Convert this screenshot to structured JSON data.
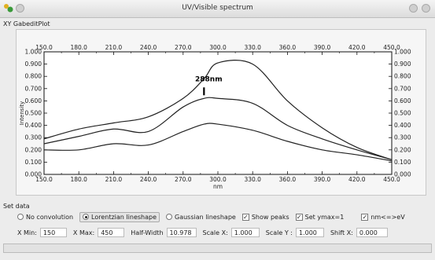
{
  "window": {
    "title": "UV/Visible spectrum"
  },
  "plot_panel": {
    "label": "XY GabeditPlot"
  },
  "chart_data": {
    "type": "line",
    "xlabel": "nm",
    "ylabel": "Intensity",
    "xlim": [
      150,
      450
    ],
    "ylim": [
      0,
      1
    ],
    "x_ticks": [
      "150.0",
      "180.0",
      "210.0",
      "240.0",
      "270.0",
      "300.0",
      "330.0",
      "360.0",
      "390.0",
      "420.0",
      "450.0"
    ],
    "y_ticks": [
      "0.000",
      "0.100",
      "0.200",
      "0.300",
      "0.400",
      "0.500",
      "0.600",
      "0.700",
      "0.800",
      "0.900",
      "1.000"
    ],
    "series": [
      {
        "x": [
          150,
          180,
          210,
          240,
          270,
          288,
          300,
          330,
          360,
          390,
          420,
          450
        ],
        "y": [
          0.29,
          0.37,
          0.42,
          0.47,
          0.62,
          0.78,
          0.91,
          0.9,
          0.6,
          0.38,
          0.22,
          0.12
        ]
      },
      {
        "x": [
          150,
          180,
          210,
          240,
          270,
          288,
          300,
          330,
          360,
          390,
          420,
          450
        ],
        "y": [
          0.25,
          0.31,
          0.37,
          0.35,
          0.55,
          0.62,
          0.62,
          0.58,
          0.4,
          0.29,
          0.2,
          0.12
        ]
      },
      {
        "x": [
          150,
          180,
          210,
          240,
          270,
          288,
          300,
          330,
          360,
          390,
          420,
          450
        ],
        "y": [
          0.2,
          0.2,
          0.25,
          0.24,
          0.35,
          0.41,
          0.41,
          0.36,
          0.27,
          0.2,
          0.16,
          0.11
        ]
      }
    ],
    "annotations": [
      {
        "text": "288nm",
        "x": 288,
        "y": 0.62
      }
    ]
  },
  "set_data": {
    "group_label": "Set data",
    "options": {
      "no_convolution": "No convolution",
      "lorentzian": "Lorentzian lineshape",
      "gaussian": "Gaussian lineshape",
      "show_peaks": "Show peaks",
      "set_ymax": "Set ymax=1",
      "nm_ev": "nm<=>eV"
    },
    "selected_lineshape": "lorentzian",
    "checked": {
      "show_peaks": true,
      "set_ymax": true,
      "nm_ev": true
    },
    "fields": {
      "xmin_label": "X Min:",
      "xmin_value": "150",
      "xmax_label": "X Max:",
      "xmax_value": "450",
      "halfwidth_label": "Half-Width",
      "halfwidth_value": "10.978",
      "scalex_label": "Scale X:",
      "scalex_value": "1.000",
      "scaley_label": "Scale Y :",
      "scaley_value": "1.000",
      "shiftx_label": "Shift X:",
      "shiftx_value": "0.000"
    }
  },
  "colors": {
    "curve": "#222222",
    "frame": "#111111"
  }
}
